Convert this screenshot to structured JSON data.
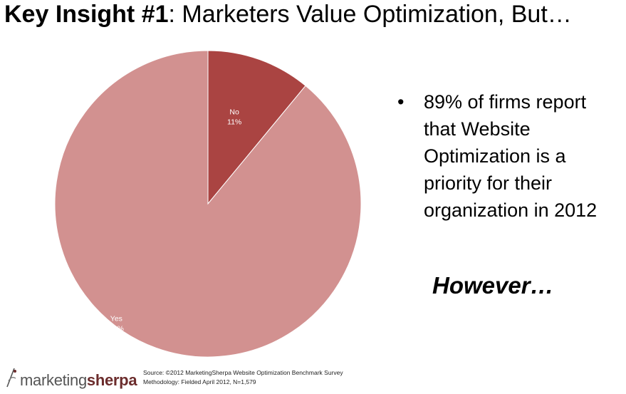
{
  "header": {
    "title_bold": "Key Insight #1",
    "title_rest": ": Marketers Value Optimization, But…"
  },
  "chart_data": {
    "type": "pie",
    "slices": [
      {
        "name": "No",
        "value": 11,
        "label": "11%",
        "color": "#aa4442"
      },
      {
        "name": "Yes",
        "value": 89,
        "label": "89%",
        "color": "#d29190"
      }
    ]
  },
  "insight": {
    "bullet_char": "•",
    "text": "89% of firms report that Website Optimization is a priority for their organization in 2012",
    "however": "However…"
  },
  "footer": {
    "logo_part1": "marketing",
    "logo_part2": "sherpa",
    "source_line": "Source: ©2012 MarketingSherpa Website Optimization Benchmark Survey",
    "methodology_line": "Methodology: Fielded April 2012, N=1,579"
  }
}
